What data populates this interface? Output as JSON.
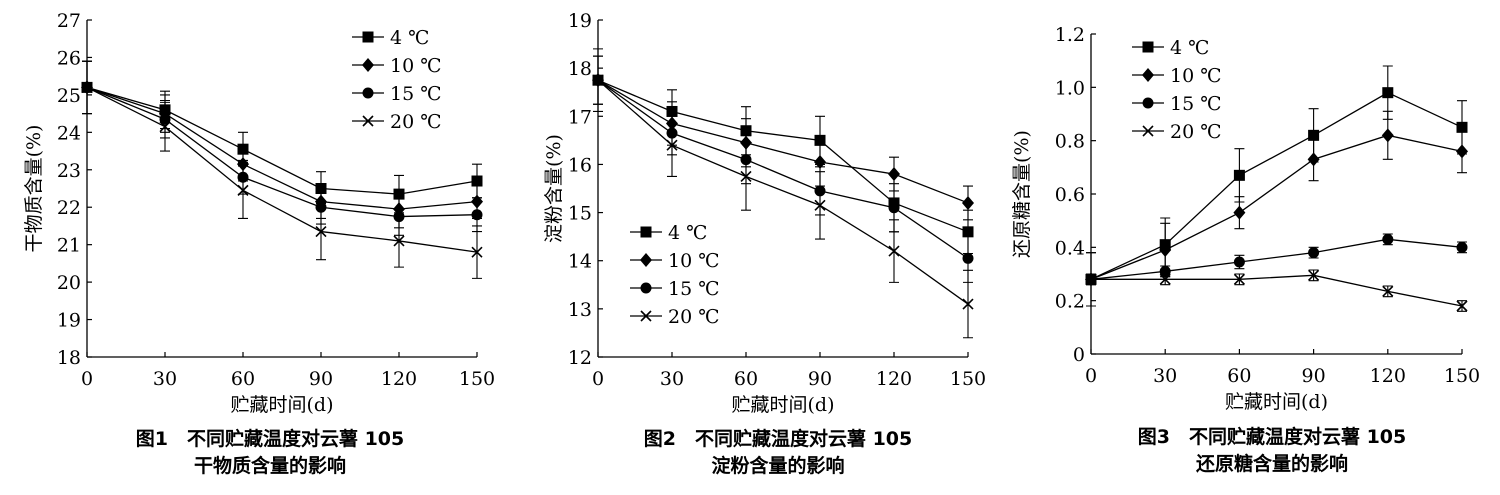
{
  "figures": [
    {
      "caption_line1": "图1　不同贮藏温度对云薯 105",
      "caption_line2": "干物质含量的影响"
    },
    {
      "caption_line1": "图2　不同贮藏温度对云薯 105",
      "caption_line2": "淀粉含量的影响"
    },
    {
      "caption_line1": "图3　不同贮藏温度对云薯 105",
      "caption_line2": "还原糖含量的影响"
    }
  ],
  "chart_data": [
    {
      "type": "line",
      "title": "",
      "xlabel": "贮藏时间(d)",
      "ylabel": "干物质含量(%)",
      "x": [
        0,
        30,
        60,
        90,
        120,
        150
      ],
      "xticks": [
        "0",
        "30",
        "60",
        "90",
        "120",
        "150"
      ],
      "xlim": [
        0,
        150
      ],
      "ylim": [
        18,
        27
      ],
      "yticks": [
        "18",
        "19",
        "20",
        "21",
        "22",
        "23",
        "24",
        "25",
        "26",
        "27"
      ],
      "legend_position": "top-right",
      "grid": false,
      "series": [
        {
          "name": "4 ℃",
          "marker": "square",
          "values": [
            25.2,
            24.6,
            23.55,
            22.5,
            22.35,
            22.7
          ],
          "errors": [
            0.7,
            0.5,
            0.45,
            0.45,
            0.5,
            0.45
          ]
        },
        {
          "name": "10 ℃",
          "marker": "diamond",
          "values": [
            25.2,
            24.5,
            23.15,
            22.15,
            21.95,
            22.15
          ],
          "errors": [
            0.7,
            0.5,
            0.45,
            0.45,
            0.5,
            0.45
          ]
        },
        {
          "name": "15 ℃",
          "marker": "circle",
          "values": [
            25.2,
            24.35,
            22.8,
            22.0,
            21.75,
            21.8
          ],
          "errors": [
            0.7,
            0.5,
            0.45,
            0.45,
            0.5,
            0.45
          ]
        },
        {
          "name": "20 ℃",
          "marker": "x",
          "values": [
            25.2,
            24.15,
            22.45,
            21.35,
            21.1,
            20.8
          ],
          "errors": [
            0.7,
            0.65,
            0.75,
            0.75,
            0.7,
            0.7
          ]
        }
      ]
    },
    {
      "type": "line",
      "title": "",
      "xlabel": "贮藏时间(d)",
      "ylabel": "淀粉含量(%)",
      "x": [
        0,
        30,
        60,
        90,
        120,
        150
      ],
      "xticks": [
        "0",
        "30",
        "60",
        "90",
        "120",
        "150"
      ],
      "xlim": [
        0,
        150
      ],
      "ylim": [
        12,
        19
      ],
      "yticks": [
        "12",
        "13",
        "14",
        "15",
        "16",
        "17",
        "18",
        "19"
      ],
      "legend_position": "bottom-left",
      "grid": false,
      "series": [
        {
          "name": "4 ℃",
          "marker": "square",
          "values": [
            17.75,
            17.1,
            16.7,
            16.5,
            15.2,
            14.6
          ],
          "errors": [
            0.5,
            0.45,
            0.5,
            0.5,
            0.6,
            0.45
          ]
        },
        {
          "name": "10 ℃",
          "marker": "diamond",
          "values": [
            17.75,
            16.85,
            16.45,
            16.05,
            15.8,
            15.2
          ],
          "errors": [
            0.5,
            0.45,
            0.5,
            0.5,
            0.35,
            0.35
          ]
        },
        {
          "name": "15 ℃",
          "marker": "circle",
          "values": [
            17.75,
            16.65,
            16.1,
            15.45,
            15.1,
            14.05
          ],
          "errors": [
            0.5,
            0.45,
            0.5,
            0.5,
            0.5,
            0.5
          ]
        },
        {
          "name": "20 ℃",
          "marker": "x",
          "values": [
            17.75,
            16.4,
            15.75,
            15.15,
            14.2,
            13.1
          ],
          "errors": [
            0.65,
            0.65,
            0.7,
            0.7,
            0.65,
            0.7
          ]
        }
      ]
    },
    {
      "type": "line",
      "title": "",
      "xlabel": "贮藏时间(d)",
      "ylabel": "还原糖含量(%)",
      "x": [
        0,
        30,
        60,
        90,
        120,
        150
      ],
      "xticks": [
        "0",
        "30",
        "60",
        "90",
        "120",
        "150"
      ],
      "xlim": [
        0,
        150
      ],
      "ylim": [
        0,
        1.2
      ],
      "yticks": [
        "0",
        "0.2",
        "0.4",
        "0.6",
        "0.8",
        "1.0",
        "1.2"
      ],
      "legend_position": "top-left",
      "grid": false,
      "series": [
        {
          "name": "4 ℃",
          "marker": "square",
          "values": [
            0.28,
            0.41,
            0.67,
            0.82,
            0.98,
            0.85
          ],
          "errors": [
            0.1,
            0.1,
            0.1,
            0.1,
            0.1,
            0.1
          ]
        },
        {
          "name": "10 ℃",
          "marker": "diamond",
          "values": [
            0.28,
            0.39,
            0.53,
            0.73,
            0.82,
            0.76
          ],
          "errors": [
            0.1,
            0.1,
            0.06,
            0.08,
            0.09,
            0.08
          ]
        },
        {
          "name": "15 ℃",
          "marker": "circle",
          "values": [
            0.28,
            0.31,
            0.345,
            0.38,
            0.43,
            0.4
          ],
          "errors": [
            0.02,
            0.02,
            0.025,
            0.02,
            0.02,
            0.02
          ]
        },
        {
          "name": "20 ℃",
          "marker": "x",
          "values": [
            0.28,
            0.28,
            0.28,
            0.295,
            0.235,
            0.18
          ],
          "errors": [
            0.02,
            0.02,
            0.02,
            0.02,
            0.02,
            0.02
          ]
        }
      ]
    }
  ]
}
